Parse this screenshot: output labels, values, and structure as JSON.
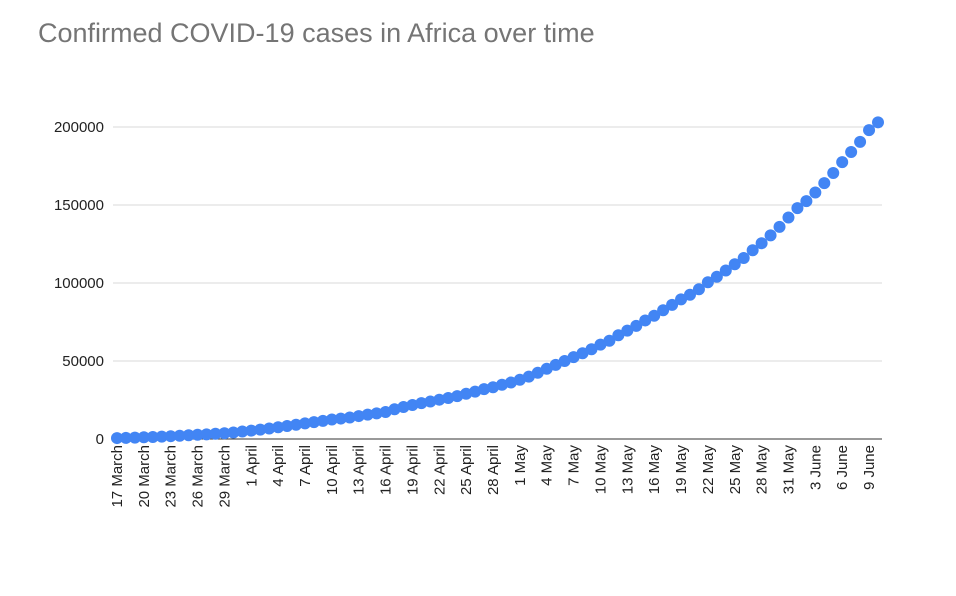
{
  "chart_data": {
    "type": "scatter",
    "title": "Confirmed COVID-19 cases in Africa over time",
    "xlabel": "",
    "ylabel": "",
    "ylim": [
      0,
      200000
    ],
    "y_ticks": [
      "0",
      "50000",
      "100000",
      "150000",
      "200000"
    ],
    "x_ticks": [
      "17 March",
      "20 March",
      "23 March",
      "26 March",
      "29 March",
      "1 April",
      "4 April",
      "7 April",
      "10 April",
      "13 April",
      "16 April",
      "19 April",
      "22 April",
      "25 April",
      "28 April",
      "1 May",
      "4 May",
      "7 May",
      "10 May",
      "13 May",
      "16 May",
      "19 May",
      "22 May",
      "25 May",
      "28 May",
      "31 May",
      "3 June",
      "6 June",
      "9 June"
    ],
    "x_range": [
      "17 March",
      "10 June"
    ],
    "grid": true,
    "legend": "none",
    "colors": {
      "series": "#4285f4",
      "title": "#757575"
    },
    "series": [
      {
        "dates": [
          "17 March",
          "18 March",
          "19 March",
          "20 March",
          "21 March",
          "22 March",
          "23 March",
          "24 March",
          "25 March",
          "26 March",
          "27 March",
          "28 March",
          "29 March",
          "30 March",
          "31 March",
          "1 April",
          "2 April",
          "3 April",
          "4 April",
          "5 April",
          "6 April",
          "7 April",
          "8 April",
          "9 April",
          "10 April",
          "11 April",
          "12 April",
          "13 April",
          "14 April",
          "15 April",
          "16 April",
          "17 April",
          "18 April",
          "19 April",
          "20 April",
          "21 April",
          "22 April",
          "23 April",
          "24 April",
          "25 April",
          "26 April",
          "27 April",
          "28 April",
          "29 April",
          "30 April",
          "1 May",
          "2 May",
          "3 May",
          "4 May",
          "5 May",
          "6 May",
          "7 May",
          "8 May",
          "9 May",
          "10 May",
          "11 May",
          "12 May",
          "13 May",
          "14 May",
          "15 May",
          "16 May",
          "17 May",
          "18 May",
          "19 May",
          "20 May",
          "21 May",
          "22 May",
          "23 May",
          "24 May",
          "25 May",
          "26 May",
          "27 May",
          "28 May",
          "29 May",
          "30 May",
          "31 May",
          "1 June",
          "2 June",
          "3 June",
          "4 June",
          "5 June",
          "6 June",
          "7 June",
          "8 June",
          "9 June",
          "10 June"
        ],
        "values": [
          600,
          700,
          900,
          1100,
          1300,
          1500,
          1800,
          2100,
          2400,
          2700,
          3000,
          3400,
          3700,
          4200,
          4800,
          5400,
          6000,
          6700,
          7500,
          8300,
          9100,
          10000,
          10800,
          11600,
          12500,
          13100,
          13800,
          14700,
          15600,
          16400,
          17300,
          19100,
          20500,
          21800,
          23000,
          24000,
          25200,
          26300,
          27500,
          29000,
          30400,
          32000,
          33200,
          34800,
          36200,
          38000,
          40000,
          42500,
          45000,
          47500,
          50000,
          52500,
          55000,
          57500,
          60500,
          63000,
          66500,
          69500,
          72500,
          76000,
          79000,
          82500,
          86000,
          89500,
          92500,
          96000,
          100500,
          104000,
          108000,
          112000,
          116000,
          121000,
          125500,
          130500,
          136000,
          142000,
          148000,
          152500,
          158000,
          164000,
          170500,
          177500,
          184000,
          190500,
          198000,
          203000
        ]
      }
    ]
  }
}
